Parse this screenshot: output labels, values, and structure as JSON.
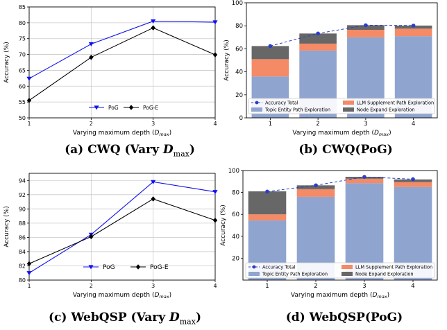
{
  "captions": {
    "a": "(a) CWQ (Vary D_max)",
    "b": "(b) CWQ(PoG)",
    "c": "(c) WebQSP (Vary D_max)",
    "d": "(d) WebQSP(PoG)"
  },
  "colors": {
    "pog": "#1010ee",
    "poge": "#000000",
    "topic": "#8fa4cf",
    "llm": "#f48a66",
    "node": "#676767",
    "total": "#2a3ec8"
  },
  "chart_data": [
    {
      "type": "line",
      "xlabel": "Varying maximum depth (D_max)",
      "ylabel": "Accuracy (%)",
      "x": [
        1,
        2,
        3,
        4
      ],
      "ylim": [
        50,
        85
      ],
      "yticks": [
        50,
        55,
        60,
        65,
        70,
        75,
        80,
        85
      ],
      "grid": true,
      "legend": "bottom-center",
      "series": [
        {
          "name": "PoG",
          "values": [
            62.4,
            73.3,
            80.5,
            80.2
          ]
        },
        {
          "name": "PoG-E",
          "values": [
            55.5,
            69.1,
            78.4,
            69.9
          ]
        }
      ]
    },
    {
      "type": "bar",
      "xlabel": "Varying maximum depth (D_max)",
      "ylabel": "Accuracy (%)",
      "categories": [
        "1",
        "2",
        "3",
        "4"
      ],
      "ylim": [
        0,
        100
      ],
      "yticks": [
        0,
        20,
        40,
        60,
        80,
        100
      ],
      "legend": "bottom-inside",
      "stacked": true,
      "series": [
        {
          "name": "Topic Entity Path Exploration",
          "values": [
            36,
            58.5,
            70,
            71
          ]
        },
        {
          "name": "LLM Supplement Path Exploration",
          "values": [
            15,
            6,
            6.5,
            6.5
          ]
        },
        {
          "name": "Node Expand Exploration",
          "values": [
            11.4,
            8.8,
            4,
            2.7
          ]
        }
      ],
      "line": {
        "name": "Accuracy Total",
        "values": [
          62.4,
          73.3,
          80.5,
          80.2
        ]
      }
    },
    {
      "type": "line",
      "xlabel": "Varying maximum depth (D_max)",
      "ylabel": "Accuracy (%)",
      "x": [
        1,
        2,
        3,
        4
      ],
      "ylim": [
        80,
        95
      ],
      "yticks": [
        80,
        82,
        84,
        86,
        88,
        90,
        92,
        94
      ],
      "grid": true,
      "legend": "bottom-center",
      "series": [
        {
          "name": "PoG",
          "values": [
            81.0,
            86.4,
            93.8,
            92.4
          ]
        },
        {
          "name": "PoG-E",
          "values": [
            82.3,
            86.1,
            91.4,
            88.4
          ]
        }
      ]
    },
    {
      "type": "bar",
      "xlabel": "Varying maximum depth (D_max)",
      "ylabel": "Accuracy (%)",
      "categories": [
        "1",
        "2",
        "3",
        "4"
      ],
      "ylim": [
        0,
        100
      ],
      "yticks": [
        20,
        40,
        60,
        80,
        100
      ],
      "legend": "bottom-inside",
      "stacked": true,
      "series": [
        {
          "name": "Topic Entity Path Exploration",
          "values": [
            54.5,
            76,
            88.5,
            85
          ]
        },
        {
          "name": "LLM Supplement Path Exploration",
          "values": [
            5.5,
            7,
            4,
            4.5
          ]
        },
        {
          "name": "Node Expand Exploration",
          "values": [
            21,
            3.5,
            1.8,
            2.4
          ]
        }
      ],
      "line": {
        "name": "Accuracy Total",
        "values": [
          80.8,
          86.5,
          94.2,
          92.1
        ]
      }
    }
  ]
}
